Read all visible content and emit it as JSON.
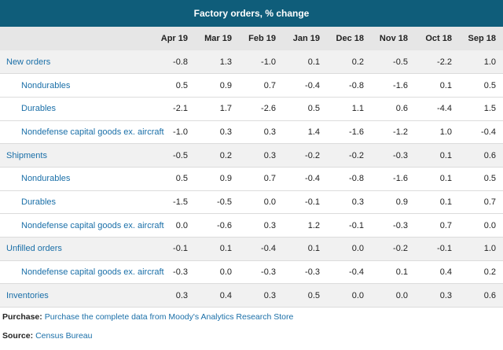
{
  "title": "Factory orders, % change",
  "columns": [
    "Apr 19",
    "Mar 19",
    "Feb 19",
    "Jan 19",
    "Dec 18",
    "Nov 18",
    "Oct 18",
    "Sep 18"
  ],
  "rows": [
    {
      "label": "New orders",
      "level": "top",
      "values": [
        "-0.8",
        "1.3",
        "-1.0",
        "0.1",
        "0.2",
        "-0.5",
        "-2.2",
        "1.0"
      ]
    },
    {
      "label": "Nondurables",
      "level": "sub",
      "values": [
        "0.5",
        "0.9",
        "0.7",
        "-0.4",
        "-0.8",
        "-1.6",
        "0.1",
        "0.5"
      ]
    },
    {
      "label": "Durables",
      "level": "sub",
      "values": [
        "-2.1",
        "1.7",
        "-2.6",
        "0.5",
        "1.1",
        "0.6",
        "-4.4",
        "1.5"
      ]
    },
    {
      "label": "Nondefense capital goods ex. aircraft",
      "level": "sub",
      "values": [
        "-1.0",
        "0.3",
        "0.3",
        "1.4",
        "-1.6",
        "-1.2",
        "1.0",
        "-0.4"
      ]
    },
    {
      "label": "Shipments",
      "level": "top",
      "values": [
        "-0.5",
        "0.2",
        "0.3",
        "-0.2",
        "-0.2",
        "-0.3",
        "0.1",
        "0.6"
      ]
    },
    {
      "label": "Nondurables",
      "level": "sub",
      "values": [
        "0.5",
        "0.9",
        "0.7",
        "-0.4",
        "-0.8",
        "-1.6",
        "0.1",
        "0.5"
      ]
    },
    {
      "label": "Durables",
      "level": "sub",
      "values": [
        "-1.5",
        "-0.5",
        "0.0",
        "-0.1",
        "0.3",
        "0.9",
        "0.1",
        "0.7"
      ]
    },
    {
      "label": "Nondefense capital goods ex. aircraft",
      "level": "sub",
      "values": [
        "0.0",
        "-0.6",
        "0.3",
        "1.2",
        "-0.1",
        "-0.3",
        "0.7",
        "0.0"
      ]
    },
    {
      "label": "Unfilled orders",
      "level": "top",
      "values": [
        "-0.1",
        "0.1",
        "-0.4",
        "0.1",
        "0.0",
        "-0.2",
        "-0.1",
        "1.0"
      ]
    },
    {
      "label": "Nondefense capital goods ex. aircraft",
      "level": "sub",
      "values": [
        "-0.3",
        "0.0",
        "-0.3",
        "-0.3",
        "-0.4",
        "0.1",
        "0.4",
        "0.2"
      ]
    },
    {
      "label": "Inventories",
      "level": "top",
      "values": [
        "0.3",
        "0.4",
        "0.3",
        "0.5",
        "0.0",
        "0.0",
        "0.3",
        "0.6"
      ]
    }
  ],
  "purchase": {
    "label": "Purchase:",
    "text": "Purchase the complete data from Moody's Analytics Research Store"
  },
  "source": {
    "label": "Source:",
    "text": "Census Bureau"
  }
}
